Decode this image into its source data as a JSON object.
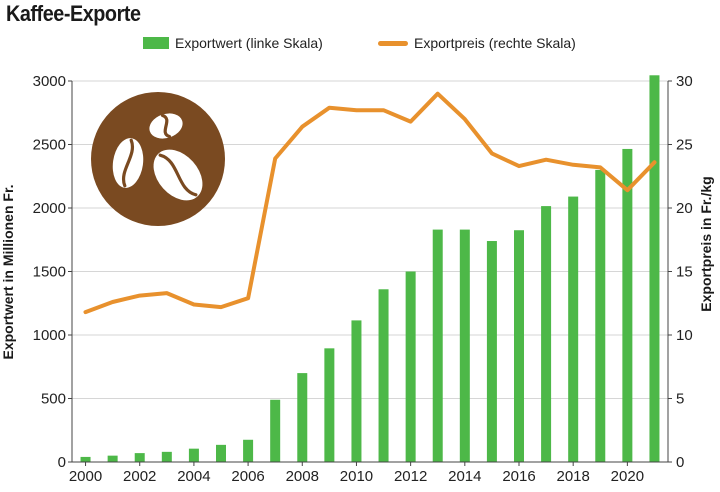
{
  "chart_data": {
    "type": "bar",
    "title": "Kaffee-Exporte",
    "x": [
      "2000",
      "2001",
      "2002",
      "2003",
      "2004",
      "2005",
      "2006",
      "2007",
      "2008",
      "2009",
      "2010",
      "2011",
      "2012",
      "2013",
      "2014",
      "2015",
      "2016",
      "2017",
      "2018",
      "2019",
      "2020",
      "2021"
    ],
    "x_tick_labels": [
      "2000",
      "2002",
      "2004",
      "2006",
      "2008",
      "2010",
      "2012",
      "2014",
      "2016",
      "2018",
      "2020"
    ],
    "series": [
      {
        "name": "Exportwert (linke Skala)",
        "type": "bar",
        "axis": "left",
        "color": "#4db848",
        "values": [
          40,
          50,
          70,
          80,
          105,
          135,
          175,
          490,
          700,
          895,
          1115,
          1360,
          1500,
          1830,
          1830,
          1740,
          1825,
          2015,
          2090,
          2300,
          2465,
          3045
        ]
      },
      {
        "name": "Exportpreis (rechte Skala)",
        "type": "line",
        "axis": "right",
        "color": "#e8912d",
        "values": [
          11.8,
          12.6,
          13.1,
          13.3,
          12.4,
          12.2,
          12.9,
          23.9,
          26.4,
          27.9,
          27.7,
          27.7,
          26.8,
          29.0,
          27.0,
          24.3,
          23.3,
          23.8,
          23.4,
          23.2,
          21.4,
          23.6
        ]
      }
    ],
    "ylabel": "Exportwert in Millionen Fr.",
    "y2label": "Exportpreis in Fr./kg",
    "ylim": [
      0,
      3000
    ],
    "y2lim": [
      0,
      30
    ],
    "yticks": [
      "0",
      "500",
      "1000",
      "1500",
      "2000",
      "2500",
      "3000"
    ],
    "y2ticks": [
      "0",
      "5",
      "10",
      "15",
      "20",
      "25",
      "30"
    ],
    "grid": "horizontal",
    "legend_position": "top"
  },
  "icon": {
    "name": "coffee-beans-icon",
    "circle_color": "#7a4a21",
    "bean_color": "#ffffff"
  }
}
